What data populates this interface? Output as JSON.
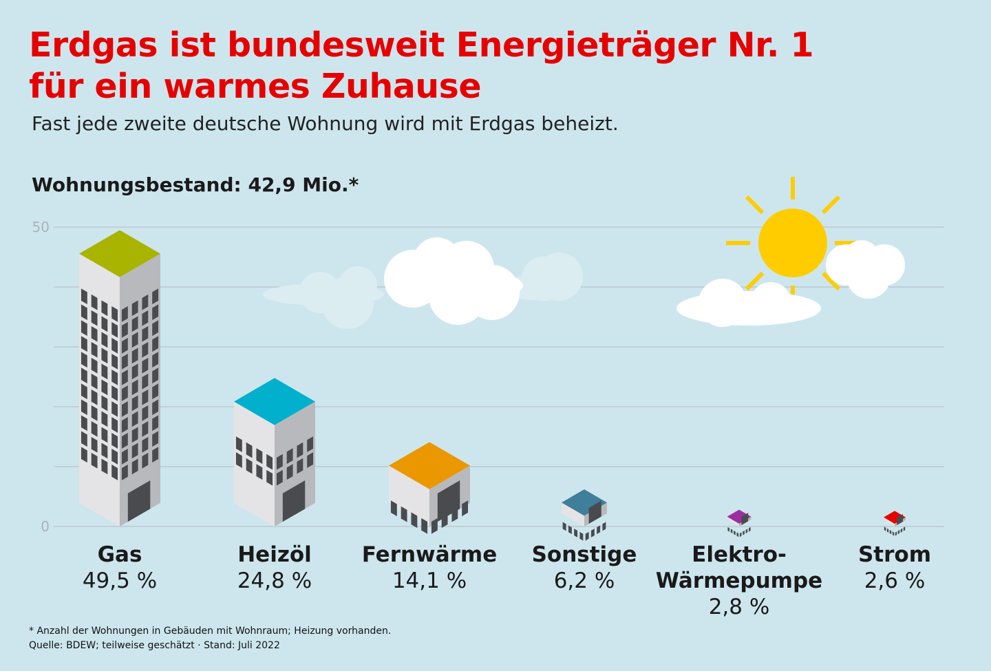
{
  "title_line1": "Erdgas ist bundesweit Energieträger Nr. 1",
  "title_line2": "für ein warmes Zuhause",
  "subtitle": "Fast jede zweite deutsche Wohnung wird mit Erdgas beheizt.",
  "stock_label": "Wohnungsbestand: 42,9 Mio.*",
  "footnote": "* Anzahl der Wohnungen in Gebäuden mit Wohnraum; Heizung vorhanden.",
  "source": "Quelle: BDEW; teilweise geschätzt · Stand: Juli 2022",
  "chart_data": {
    "type": "bar",
    "unit": "%",
    "categories": [
      "Gas",
      "Heizöl",
      "Fernwärme",
      "Sonstige",
      "Elektro-\nWärmepumpe",
      "Strom"
    ],
    "values": [
      49.5,
      24.8,
      14.1,
      6.2,
      2.8,
      2.6
    ],
    "value_labels": [
      "49,5 %",
      "24,8 %",
      "14,1 %",
      "6,2 %",
      "2,8 %",
      "2,6 %"
    ],
    "roof_colors": [
      "#a8b400",
      "#00b0cc",
      "#eb9700",
      "#3f7f99",
      "#9b2f9f",
      "#e60000"
    ],
    "ylim": [
      0,
      50
    ],
    "yticks": [
      0,
      50
    ],
    "gridlines": [
      0,
      10,
      20,
      30,
      40,
      50
    ],
    "grid": true
  }
}
